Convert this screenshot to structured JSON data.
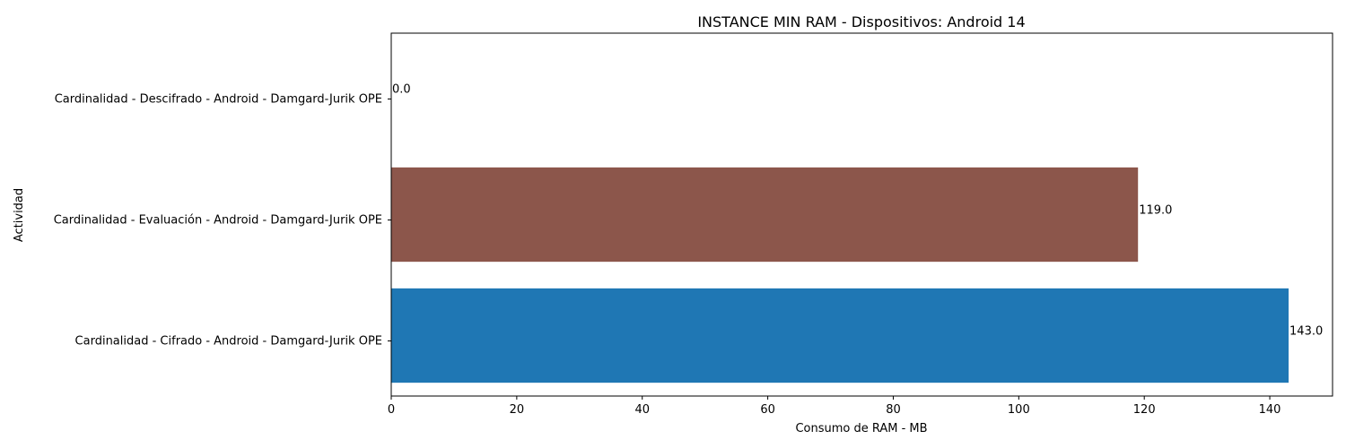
{
  "chart_data": {
    "type": "bar",
    "orientation": "horizontal",
    "title": "INSTANCE MIN RAM - Dispositivos: Android 14",
    "xlabel": "Consumo de RAM - MB",
    "ylabel": "Actividad",
    "xlim": [
      0,
      150
    ],
    "xticks": [
      0,
      20,
      40,
      60,
      80,
      100,
      120,
      140
    ],
    "grid": false,
    "categories": [
      "Cardinalidad - Cifrado - Android - Damgard-Jurik OPE",
      "Cardinalidad - Evaluación - Android - Damgard-Jurik OPE",
      "Cardinalidad - Descifrado - Android - Damgard-Jurik OPE"
    ],
    "values": [
      143.0,
      119.0,
      0.0
    ],
    "value_labels": [
      "143.0",
      "119.0",
      "0.0"
    ],
    "colors": [
      "#1f77b4",
      "#8c564b",
      "#e377c2"
    ]
  }
}
